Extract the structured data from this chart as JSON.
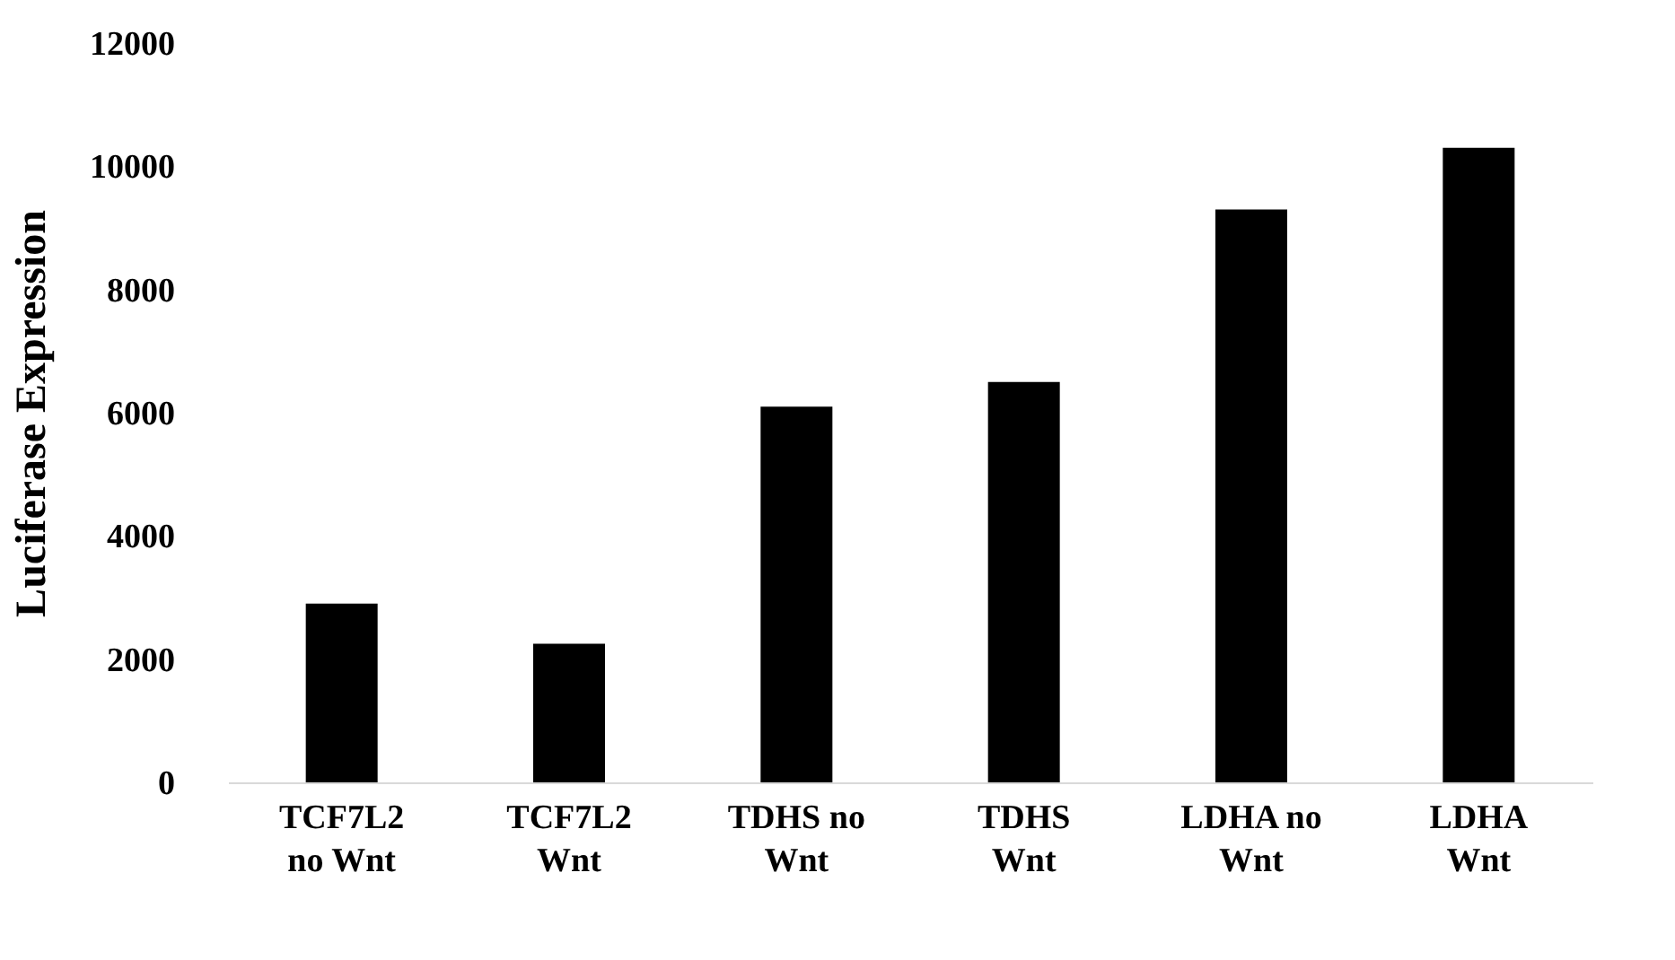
{
  "chart_data": {
    "type": "bar",
    "categories": [
      "TCF7L2 no Wnt",
      "TCF7L2 Wnt",
      "TDHS no Wnt",
      "TDHS Wnt",
      "LDHA no Wnt",
      "LDHA Wnt"
    ],
    "values": [
      2900,
      2250,
      6100,
      6500,
      9300,
      10300
    ],
    "color": "#000000",
    "ylabel": "Luciferase Expression",
    "ylim": [
      0,
      12000
    ],
    "yticks": [
      0,
      2000,
      4000,
      6000,
      8000,
      10000,
      12000
    ],
    "grid": false
  }
}
